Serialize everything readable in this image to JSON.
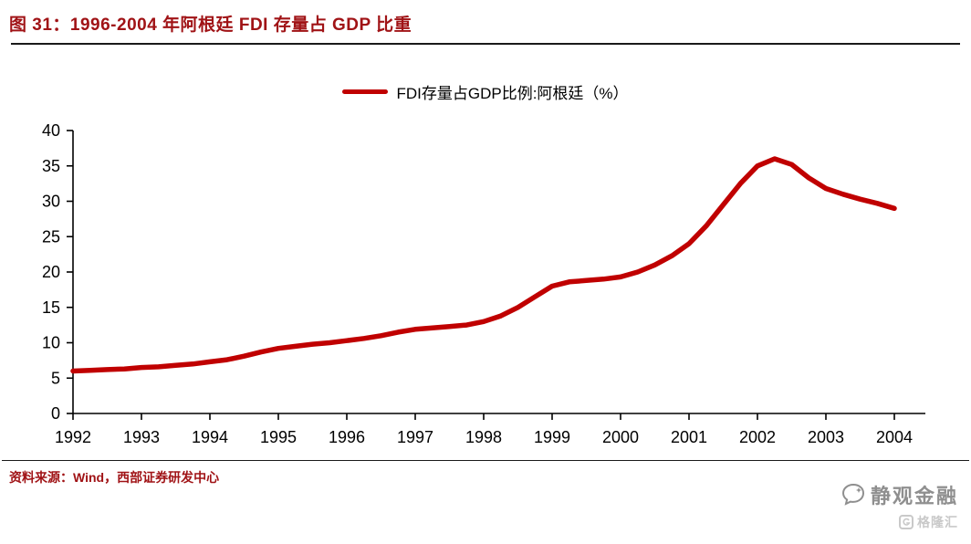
{
  "header": {
    "title": "图 31：1996-2004 年阿根廷 FDI 存量占 GDP 比重"
  },
  "legend": {
    "label": "FDI存量占GDP比例:阿根廷（%）"
  },
  "footer": {
    "source": "资料来源：Wind，西部证券研发中心"
  },
  "watermark": {
    "primary": "静观金融",
    "secondary": "格隆汇"
  },
  "colors": {
    "line": "#c00000",
    "title": "#a01316",
    "axis": "#000000",
    "watermark_primary": "#8f8f8f",
    "watermark_secondary": "#c9c9c9"
  },
  "chart_data": {
    "type": "line",
    "title": "图 31：1996-2004 年阿根廷 FDI 存量占 GDP 比重",
    "xlabel": "",
    "ylabel": "",
    "xlim": [
      1992,
      2004
    ],
    "ylim": [
      0,
      40
    ],
    "y_ticks": [
      0,
      5,
      10,
      15,
      20,
      25,
      30,
      35,
      40
    ],
    "x_ticks": [
      1992,
      1993,
      1994,
      1995,
      1996,
      1997,
      1998,
      1999,
      2000,
      2001,
      2002,
      2003,
      2004
    ],
    "grid": false,
    "legend_position": "top-center",
    "series": [
      {
        "name": "FDI存量占GDP比例:阿根廷（%）",
        "x": [
          1992,
          1992.25,
          1992.5,
          1992.75,
          1993,
          1993.25,
          1993.5,
          1993.75,
          1994,
          1994.25,
          1994.5,
          1994.75,
          1995,
          1995.25,
          1995.5,
          1995.75,
          1996,
          1996.25,
          1996.5,
          1996.75,
          1997,
          1997.25,
          1997.5,
          1997.75,
          1998,
          1998.25,
          1998.5,
          1998.75,
          1999,
          1999.25,
          1999.5,
          1999.75,
          2000,
          2000.25,
          2000.5,
          2000.75,
          2001,
          2001.25,
          2001.5,
          2001.75,
          2002,
          2002.25,
          2002.5,
          2002.75,
          2003,
          2003.25,
          2003.5,
          2003.75,
          2004
        ],
        "y": [
          6.0,
          6.1,
          6.2,
          6.3,
          6.5,
          6.6,
          6.8,
          7.0,
          7.3,
          7.6,
          8.1,
          8.7,
          9.2,
          9.5,
          9.8,
          10.0,
          10.3,
          10.6,
          11.0,
          11.5,
          11.9,
          12.1,
          12.3,
          12.5,
          13.0,
          13.8,
          15.0,
          16.5,
          18.0,
          18.6,
          18.8,
          19.0,
          19.3,
          20.0,
          21.0,
          22.3,
          24.0,
          26.5,
          29.5,
          32.5,
          35.0,
          36.0,
          35.2,
          33.3,
          31.8,
          31.0,
          30.3,
          29.7,
          29.0
        ]
      }
    ]
  }
}
